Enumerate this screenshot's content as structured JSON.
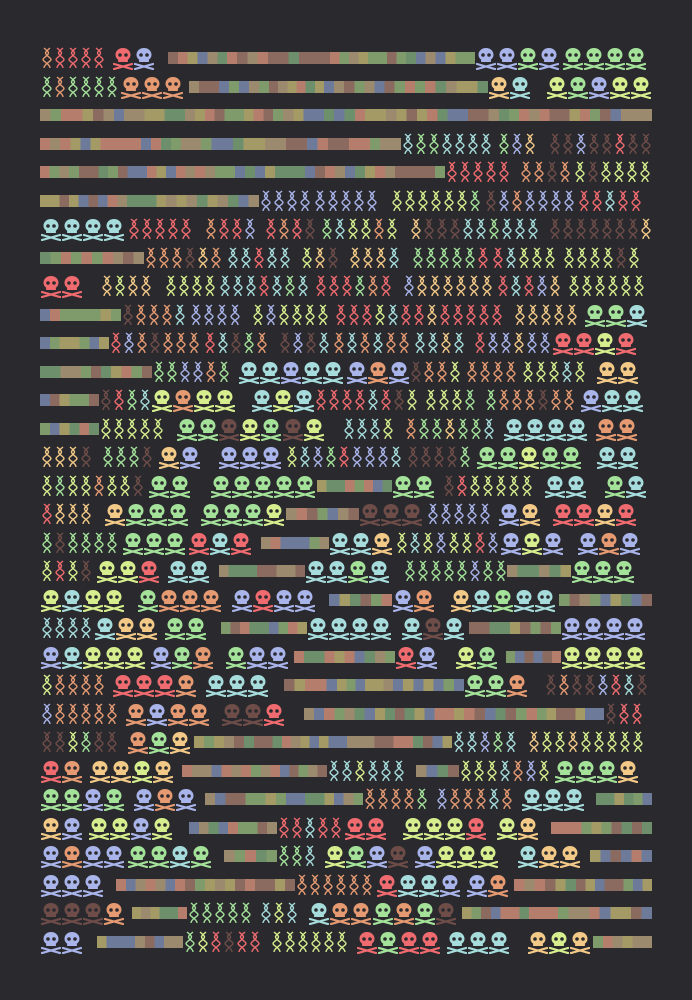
{
  "artwork": {
    "background": "#2a2a2e",
    "palette": {
      "red": "#f06b6f",
      "orange": "#e59a72",
      "yellow": "#f3c987",
      "lime": "#d6ee8e",
      "green": "#a4e29a",
      "cyan": "#a6dcdc",
      "blue": "#a9b4ea",
      "brown": "#6e4d49"
    },
    "bar_colors": [
      "#b57e6c",
      "#9b8a6e",
      "#7f9b6b",
      "#6d7a9a",
      "#a39a66",
      "#8b6a5f",
      "#6d8f6c"
    ],
    "icons": {
      "skull": "skull-crossbones-icon",
      "helix": "dna-helix-icon",
      "bar": "gene-bar"
    },
    "rows": [
      "hsbbbbss",
      "hsbbbbss",
      "bbbbbbbb",
      "bbbbbhhh",
      "bbbbbhhh",
      "bbbhhhhh",
      "shhhhhhh",
      "bhhhhhhh",
      "shhhhhhh",
      "bhhhhhhs",
      "bhhhhhhs",
      "bhsshhhs",
      "bhsshhhs",
      "bhsshhss",
      "hhsshhss",
      "hssbshss",
      "hssbshss",
      "hssbshss",
      "hssbshbs",
      "sssbsssb",
      "hssbssbs",
      "sssbssbs",
      "hssbbbsh",
      "hssbbbbh",
      "hsbbbbhh",
      "ssbbhbhs",
      "ssbbhhsb",
      "ssbhsssb",
      "ssbhsssb",
      "sbbhssbb",
      "sbhhssbb",
      "sbhhsssb"
    ]
  }
}
